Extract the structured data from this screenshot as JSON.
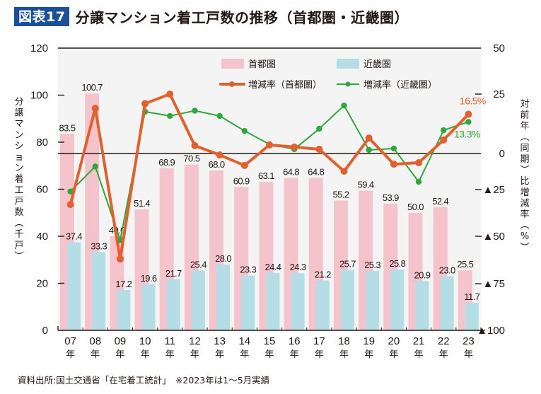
{
  "figure": {
    "badge": "図表17",
    "title": "分譲マンション着工戸数の推移（首都圏・近畿圏）",
    "footer": "資料出所:国土交通省「在宅着工統計」　※2023年は1～5月実績"
  },
  "colors": {
    "tokyo_bar": "#f4c3cb",
    "kinki_bar": "#b5dde6",
    "tokyo_line": "#e1602e",
    "kinki_line": "#2ea83a",
    "plot_bg": "#f4f4f4",
    "badge_bg": "#1a4f9c"
  },
  "chart_data": {
    "type": "bar",
    "title": "分譲マンション着工戸数の推移（首都圏・近畿圏）",
    "categories": [
      "07",
      "08",
      "09",
      "10",
      "11",
      "12",
      "13",
      "14",
      "15",
      "16",
      "17",
      "18",
      "19",
      "20",
      "21",
      "22",
      "23"
    ],
    "category_suffix": "年",
    "ylabel_left": "分譲マンション着工戸数（千戸）",
    "ylabel_right": "対前年（同期）比増減率（%）",
    "ylim_left": [
      0,
      120
    ],
    "yticks_left": [
      0,
      20,
      40,
      60,
      80,
      100,
      120
    ],
    "yticks_right": [
      {
        "value": 50,
        "label": "50"
      },
      {
        "value": 25,
        "label": "25"
      },
      {
        "value": 0,
        "label": "0"
      },
      {
        "value": -25,
        "label": "▲25"
      },
      {
        "value": -50,
        "label": "▲50"
      },
      {
        "value": -75,
        "label": "▲75"
      },
      {
        "value": -100,
        "label": "▲100"
      }
    ],
    "series": [
      {
        "name": "首都圏",
        "type": "bar",
        "axis": "left",
        "values": [
          83.5,
          100.7,
          40.0,
          51.4,
          68.9,
          70.5,
          68.0,
          60.9,
          63.1,
          64.8,
          64.8,
          55.2,
          59.4,
          53.9,
          50.0,
          52.4,
          25.5
        ]
      },
      {
        "name": "近畿圏",
        "type": "bar",
        "axis": "left",
        "values": [
          37.4,
          33.3,
          17.2,
          19.6,
          21.7,
          25.4,
          28.0,
          23.3,
          24.4,
          24.3,
          21.2,
          25.7,
          25.3,
          25.8,
          20.9,
          23.0,
          11.7
        ]
      },
      {
        "name": "増減率（首都圏）",
        "type": "line",
        "axis": "right",
        "values": [
          -33,
          19,
          -62,
          21,
          25,
          3.3,
          -1,
          -8.3,
          3.6,
          2.7,
          1.8,
          -12.3,
          6.5,
          -7.4,
          -6.4,
          5.7,
          16.5
        ],
        "end_label": "16.5%"
      },
      {
        "name": "増減率（近畿圏）",
        "type": "line",
        "axis": "right",
        "values": [
          -26,
          -9,
          -52,
          17.6,
          15.8,
          18,
          15.8,
          9.5,
          3.9,
          1.8,
          10.4,
          20.2,
          1.5,
          2.1,
          -19.6,
          9.8,
          13.3
        ],
        "end_label": "13.3%"
      }
    ],
    "legend": {
      "position": "top-right",
      "entries": [
        "首都圏",
        "近畿圏",
        "増減率（首都圏）",
        "増減率（近畿圏）"
      ]
    },
    "grid": false
  }
}
